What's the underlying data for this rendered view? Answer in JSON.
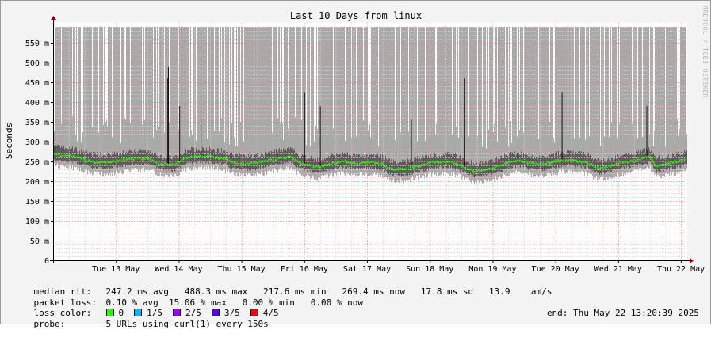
{
  "chart_data": {
    "type": "line",
    "title": "Last 10 Days from linux",
    "ylabel": "Seconds",
    "xlabel": "",
    "ylim_ms": [
      0,
      600
    ],
    "y_ticks": [
      {
        "v": 0,
        "label": "0"
      },
      {
        "v": 50,
        "label": "50 m"
      },
      {
        "v": 100,
        "label": "100 m"
      },
      {
        "v": 150,
        "label": "150 m"
      },
      {
        "v": 200,
        "label": "200 m"
      },
      {
        "v": 250,
        "label": "250 m"
      },
      {
        "v": 300,
        "label": "300 m"
      },
      {
        "v": 350,
        "label": "350 m"
      },
      {
        "v": 400,
        "label": "400 m"
      },
      {
        "v": 450,
        "label": "450 m"
      },
      {
        "v": 500,
        "label": "500 m"
      },
      {
        "v": 550,
        "label": "550 m"
      }
    ],
    "x_ticks": [
      {
        "day": 1,
        "label": "Tue 13 May"
      },
      {
        "day": 2,
        "label": "Wed 14 May"
      },
      {
        "day": 3,
        "label": "Thu 15 May"
      },
      {
        "day": 4,
        "label": "Fri 16 May"
      },
      {
        "day": 5,
        "label": "Sat 17 May"
      },
      {
        "day": 6,
        "label": "Sun 18 May"
      },
      {
        "day": 7,
        "label": "Mon 19 May"
      },
      {
        "day": 8,
        "label": "Tue 20 May"
      },
      {
        "day": 9,
        "label": "Wed 21 May"
      },
      {
        "day": 10,
        "label": "Thu 22 May"
      }
    ],
    "x_range_days": [
      0,
      10.1
    ],
    "median_ms": [
      [
        0.0,
        268
      ],
      [
        0.3,
        263
      ],
      [
        0.6,
        250
      ],
      [
        0.8,
        246
      ],
      [
        1.0,
        250
      ],
      [
        1.2,
        256
      ],
      [
        1.5,
        258
      ],
      [
        1.7,
        245
      ],
      [
        1.9,
        240
      ],
      [
        2.1,
        258
      ],
      [
        2.3,
        263
      ],
      [
        2.5,
        262
      ],
      [
        2.7,
        258
      ],
      [
        2.9,
        245
      ],
      [
        3.2,
        244
      ],
      [
        3.4,
        252
      ],
      [
        3.6,
        258
      ],
      [
        3.8,
        262
      ],
      [
        3.9,
        248
      ],
      [
        4.2,
        235
      ],
      [
        4.4,
        243
      ],
      [
        4.6,
        250
      ],
      [
        4.8,
        246
      ],
      [
        5.0,
        248
      ],
      [
        5.2,
        245
      ],
      [
        5.4,
        230
      ],
      [
        5.6,
        230
      ],
      [
        5.8,
        238
      ],
      [
        6.0,
        246
      ],
      [
        6.3,
        250
      ],
      [
        6.5,
        240
      ],
      [
        6.7,
        225
      ],
      [
        6.9,
        228
      ],
      [
        7.1,
        240
      ],
      [
        7.3,
        250
      ],
      [
        7.4,
        252
      ],
      [
        7.6,
        245
      ],
      [
        7.8,
        242
      ],
      [
        8.0,
        250
      ],
      [
        8.2,
        255
      ],
      [
        8.5,
        248
      ],
      [
        8.7,
        232
      ],
      [
        8.9,
        240
      ],
      [
        9.1,
        248
      ],
      [
        9.4,
        258
      ],
      [
        9.5,
        262
      ],
      [
        9.6,
        238
      ],
      [
        9.8,
        245
      ],
      [
        10.0,
        252
      ],
      [
        10.1,
        258
      ]
    ],
    "spike_days": [
      1.82,
      1.83,
      2.01,
      2.35,
      3.8,
      4.0,
      4.25,
      5.7,
      6.55,
      8.1,
      9.45
    ]
  },
  "legend": {
    "median_label": "median rtt:",
    "median_text": "247.2 ms avg   488.3 ms max   217.6 ms min   269.4 ms now   17.8 ms sd   13.9    am/s",
    "loss_label": "packet loss:",
    "loss_text": "0.10 % avg  15.06 % max   0.00 % min   0.00 % now",
    "color_label": "loss color:",
    "loss_colors": [
      {
        "label": "0",
        "color": "#26ff00"
      },
      {
        "label": "1/5",
        "color": "#00b8ff"
      },
      {
        "label": "2/5",
        "color": "#9c00ff"
      },
      {
        "label": "3/5",
        "color": "#5700ff"
      },
      {
        "label": "4/5",
        "color": "#ff0000"
      }
    ],
    "probe_label": "probe:",
    "probe_text": "5 URLs using curl(1) every 150s",
    "end_text": "end: Thu May 22 13:20:39 2025"
  },
  "watermark": "RRDTOOL / TOBI OETIKER",
  "colors": {
    "smoke_outer": "#a9a9a9",
    "smoke_inner": "#5c5c5c",
    "median": "#26ff00",
    "axis": "#000000",
    "arrow": "#8b0000"
  }
}
